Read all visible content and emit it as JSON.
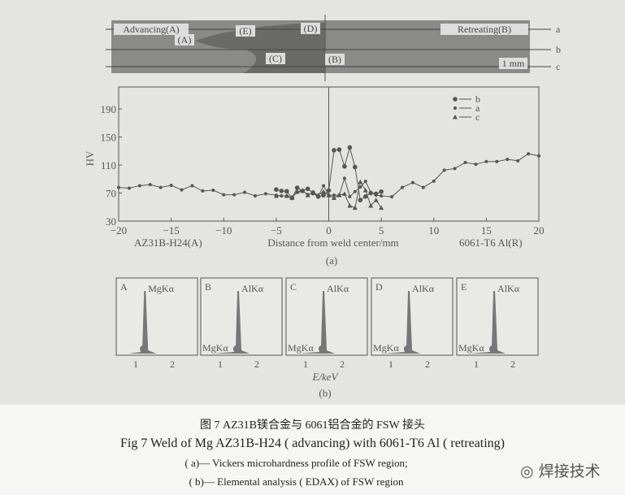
{
  "micrograph": {
    "labels": [
      "Advancing(A)",
      "(A)",
      "(E)",
      "(D)",
      "Retreating(B)",
      "(C)",
      "(B)",
      "1 mm"
    ],
    "line_labels": [
      "a",
      "b",
      "c"
    ]
  },
  "chart_data": [
    {
      "type": "line",
      "title": "",
      "xlabel": "Distance  from weld center/mm",
      "ylabel": "HV",
      "xlim": [
        -20,
        20
      ],
      "ylim": [
        30,
        210
      ],
      "xticks": [
        -20,
        -15,
        -10,
        -5,
        0,
        5,
        10,
        15,
        20
      ],
      "yticks": [
        30,
        70,
        110,
        150,
        190
      ],
      "side_labels": [
        "AZ31B-H24(A)",
        "6061-T6 Al(R)"
      ],
      "panel_label": "(a)",
      "legend": "top-right",
      "series": [
        {
          "name": "b",
          "marker": "circle",
          "x": [
            -5,
            -4.5,
            -4,
            -3.5,
            -3,
            -2.5,
            -2,
            -1.5,
            -1,
            -0.5,
            0,
            0.5,
            1,
            1.5,
            2,
            2.5,
            3,
            3.5,
            4,
            4.5,
            5
          ],
          "y": [
            75,
            73,
            72.5,
            63,
            77.5,
            73,
            76,
            70.6,
            65,
            67,
            73.7,
            131,
            132,
            108,
            135,
            107,
            60,
            65,
            70,
            69,
            72
          ]
        },
        {
          "name": "a",
          "marker": "dot",
          "x": [
            -20,
            -19,
            -18,
            -17,
            -16,
            -15,
            -14,
            -13,
            -12,
            -11,
            -10,
            -9,
            -8,
            -7,
            -6,
            -5,
            -4.5,
            -4,
            -3.5,
            -3,
            -2.5,
            -2,
            -1.5,
            -1,
            -0.5,
            0,
            0.5,
            1,
            1.5,
            2,
            2.5,
            3,
            3.5,
            4,
            4.5,
            5,
            6,
            7,
            8,
            9,
            10,
            11,
            12,
            13,
            14,
            15,
            16,
            17,
            18,
            19,
            20
          ],
          "y": [
            78,
            77,
            80.5,
            82,
            78,
            81,
            74.5,
            80.5,
            73,
            74,
            67.6,
            67.6,
            71,
            66,
            69,
            67,
            66,
            66,
            64,
            71,
            73,
            68,
            69,
            65,
            80.5,
            67,
            67,
            67,
            91,
            65,
            72,
            78.6,
            86.6,
            71,
            67,
            66,
            64.6,
            78,
            85,
            78,
            87,
            102.6,
            105,
            113.6,
            111,
            115,
            115,
            118,
            116,
            126,
            123
          ]
        },
        {
          "name": "c",
          "marker": "triangle",
          "x": [
            -5,
            -4,
            -3.5,
            -3,
            -2.5,
            -2,
            -1.5,
            -1,
            -0.5,
            0,
            0.5,
            1,
            1.5,
            2,
            2.5,
            3,
            3.5,
            4,
            4.5,
            5
          ],
          "y": [
            66,
            66,
            63,
            72,
            74,
            67,
            71,
            67,
            72,
            67,
            63,
            67,
            69,
            52,
            49,
            86,
            74,
            52,
            60,
            49
          ]
        }
      ]
    },
    {
      "type": "area",
      "title": "",
      "xlabel": "E/keV",
      "panel_label": "(b)",
      "xticks": [
        1,
        2
      ],
      "panels": [
        {
          "label": "A",
          "peaks": [
            "MgKα"
          ],
          "peak_keV": 1.25
        },
        {
          "label": "B",
          "peaks": [
            "AlKα",
            "MgKα"
          ],
          "peak_keV": 1.49
        },
        {
          "label": "C",
          "peaks": [
            "AlKα",
            "MgKα"
          ],
          "peak_keV": 1.49
        },
        {
          "label": "D",
          "peaks": [
            "AlKα",
            "MgKα"
          ],
          "peak_keV": 1.49
        },
        {
          "label": "E",
          "peaks": [
            "AlKα",
            "MgKα"
          ],
          "peak_keV": 1.49
        }
      ]
    }
  ],
  "caption": {
    "cn": "图 7   AZ31B镁合金与 6061铝合金的 FSW 接头",
    "en": "Fig 7   Weld of Mg AZ31B-H24 ( advancing) with 6061-T6 Al ( retreating)",
    "a": "( a)— Vickers microhardness profile of FSW  region;",
    "b": "( b)— Elemental analysis ( EDAX)  of FSW  region"
  },
  "watermark": "焊接技术",
  "colors": {
    "ink": "#555555",
    "fill": "#777777"
  }
}
